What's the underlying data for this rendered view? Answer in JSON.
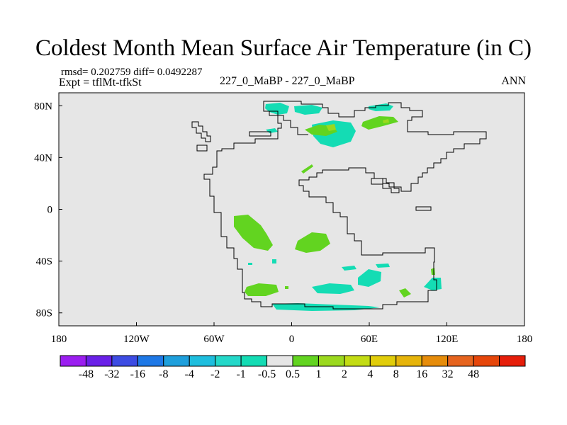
{
  "figure": {
    "title": "Coldest Month Mean Surface Air Temperature (in C)",
    "stats_line": "rmsd= 0.202759 diff= 0.0492287",
    "experiment_line": "Expt = tflMt-tfkSt",
    "case_label": "227_0_MaBP - 227_0_MaBP",
    "season_label": "ANN"
  },
  "map": {
    "background_color": "#e6e6e6",
    "x_ticks": [
      "180",
      "120W",
      "60W",
      "0",
      "60E",
      "120E",
      "180"
    ],
    "y_ticks": [
      "80N",
      "40N",
      "0",
      "40S",
      "80S"
    ]
  },
  "colorbar": {
    "colors": [
      "#9b1ef0",
      "#6a20e8",
      "#3d4ce3",
      "#1e78e6",
      "#1e9fdc",
      "#1ebede",
      "#24d8c9",
      "#14dcb4",
      "#e6e6e6",
      "#62d420",
      "#9bd91e",
      "#c3dc14",
      "#e1cd0a",
      "#e6b40a",
      "#e68c0a",
      "#e6641e",
      "#e6460a",
      "#e61e0a"
    ],
    "labels": [
      "-48",
      "-32",
      "-16",
      "-8",
      "-4",
      "-2",
      "-1",
      "-0.5",
      "0.5",
      "1",
      "2",
      "4",
      "8",
      "16",
      "32",
      "48"
    ]
  }
}
